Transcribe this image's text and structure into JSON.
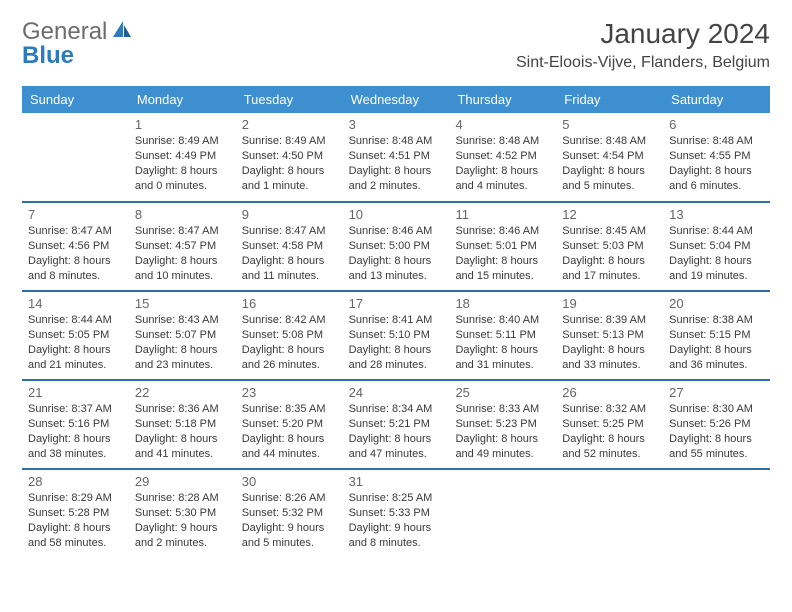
{
  "brand": {
    "part1": "General",
    "part2": "Blue"
  },
  "title": "January 2024",
  "location": "Sint-Eloois-Vijve, Flanders, Belgium",
  "colors": {
    "header_bg": "#3d8fcf",
    "header_text": "#ffffff",
    "rule": "#2f6fa8",
    "body_text": "#3a3a3a",
    "daynum_text": "#666666",
    "brand_gray": "#6c6c6c",
    "brand_blue": "#2b7bbd",
    "page_bg": "#ffffff"
  },
  "typography": {
    "title_fontsize": 28,
    "location_fontsize": 16,
    "dayhead_fontsize": 13,
    "daynum_fontsize": 13,
    "info_fontsize": 11
  },
  "day_headers": [
    "Sunday",
    "Monday",
    "Tuesday",
    "Wednesday",
    "Thursday",
    "Friday",
    "Saturday"
  ],
  "weeks": [
    [
      {
        "blank": true
      },
      {
        "num": "1",
        "sunrise": "Sunrise: 8:49 AM",
        "sunset": "Sunset: 4:49 PM",
        "daylight": "Daylight: 8 hours and 0 minutes."
      },
      {
        "num": "2",
        "sunrise": "Sunrise: 8:49 AM",
        "sunset": "Sunset: 4:50 PM",
        "daylight": "Daylight: 8 hours and 1 minute."
      },
      {
        "num": "3",
        "sunrise": "Sunrise: 8:48 AM",
        "sunset": "Sunset: 4:51 PM",
        "daylight": "Daylight: 8 hours and 2 minutes."
      },
      {
        "num": "4",
        "sunrise": "Sunrise: 8:48 AM",
        "sunset": "Sunset: 4:52 PM",
        "daylight": "Daylight: 8 hours and 4 minutes."
      },
      {
        "num": "5",
        "sunrise": "Sunrise: 8:48 AM",
        "sunset": "Sunset: 4:54 PM",
        "daylight": "Daylight: 8 hours and 5 minutes."
      },
      {
        "num": "6",
        "sunrise": "Sunrise: 8:48 AM",
        "sunset": "Sunset: 4:55 PM",
        "daylight": "Daylight: 8 hours and 6 minutes."
      }
    ],
    [
      {
        "num": "7",
        "sunrise": "Sunrise: 8:47 AM",
        "sunset": "Sunset: 4:56 PM",
        "daylight": "Daylight: 8 hours and 8 minutes."
      },
      {
        "num": "8",
        "sunrise": "Sunrise: 8:47 AM",
        "sunset": "Sunset: 4:57 PM",
        "daylight": "Daylight: 8 hours and 10 minutes."
      },
      {
        "num": "9",
        "sunrise": "Sunrise: 8:47 AM",
        "sunset": "Sunset: 4:58 PM",
        "daylight": "Daylight: 8 hours and 11 minutes."
      },
      {
        "num": "10",
        "sunrise": "Sunrise: 8:46 AM",
        "sunset": "Sunset: 5:00 PM",
        "daylight": "Daylight: 8 hours and 13 minutes."
      },
      {
        "num": "11",
        "sunrise": "Sunrise: 8:46 AM",
        "sunset": "Sunset: 5:01 PM",
        "daylight": "Daylight: 8 hours and 15 minutes."
      },
      {
        "num": "12",
        "sunrise": "Sunrise: 8:45 AM",
        "sunset": "Sunset: 5:03 PM",
        "daylight": "Daylight: 8 hours and 17 minutes."
      },
      {
        "num": "13",
        "sunrise": "Sunrise: 8:44 AM",
        "sunset": "Sunset: 5:04 PM",
        "daylight": "Daylight: 8 hours and 19 minutes."
      }
    ],
    [
      {
        "num": "14",
        "sunrise": "Sunrise: 8:44 AM",
        "sunset": "Sunset: 5:05 PM",
        "daylight": "Daylight: 8 hours and 21 minutes."
      },
      {
        "num": "15",
        "sunrise": "Sunrise: 8:43 AM",
        "sunset": "Sunset: 5:07 PM",
        "daylight": "Daylight: 8 hours and 23 minutes."
      },
      {
        "num": "16",
        "sunrise": "Sunrise: 8:42 AM",
        "sunset": "Sunset: 5:08 PM",
        "daylight": "Daylight: 8 hours and 26 minutes."
      },
      {
        "num": "17",
        "sunrise": "Sunrise: 8:41 AM",
        "sunset": "Sunset: 5:10 PM",
        "daylight": "Daylight: 8 hours and 28 minutes."
      },
      {
        "num": "18",
        "sunrise": "Sunrise: 8:40 AM",
        "sunset": "Sunset: 5:11 PM",
        "daylight": "Daylight: 8 hours and 31 minutes."
      },
      {
        "num": "19",
        "sunrise": "Sunrise: 8:39 AM",
        "sunset": "Sunset: 5:13 PM",
        "daylight": "Daylight: 8 hours and 33 minutes."
      },
      {
        "num": "20",
        "sunrise": "Sunrise: 8:38 AM",
        "sunset": "Sunset: 5:15 PM",
        "daylight": "Daylight: 8 hours and 36 minutes."
      }
    ],
    [
      {
        "num": "21",
        "sunrise": "Sunrise: 8:37 AM",
        "sunset": "Sunset: 5:16 PM",
        "daylight": "Daylight: 8 hours and 38 minutes."
      },
      {
        "num": "22",
        "sunrise": "Sunrise: 8:36 AM",
        "sunset": "Sunset: 5:18 PM",
        "daylight": "Daylight: 8 hours and 41 minutes."
      },
      {
        "num": "23",
        "sunrise": "Sunrise: 8:35 AM",
        "sunset": "Sunset: 5:20 PM",
        "daylight": "Daylight: 8 hours and 44 minutes."
      },
      {
        "num": "24",
        "sunrise": "Sunrise: 8:34 AM",
        "sunset": "Sunset: 5:21 PM",
        "daylight": "Daylight: 8 hours and 47 minutes."
      },
      {
        "num": "25",
        "sunrise": "Sunrise: 8:33 AM",
        "sunset": "Sunset: 5:23 PM",
        "daylight": "Daylight: 8 hours and 49 minutes."
      },
      {
        "num": "26",
        "sunrise": "Sunrise: 8:32 AM",
        "sunset": "Sunset: 5:25 PM",
        "daylight": "Daylight: 8 hours and 52 minutes."
      },
      {
        "num": "27",
        "sunrise": "Sunrise: 8:30 AM",
        "sunset": "Sunset: 5:26 PM",
        "daylight": "Daylight: 8 hours and 55 minutes."
      }
    ],
    [
      {
        "num": "28",
        "sunrise": "Sunrise: 8:29 AM",
        "sunset": "Sunset: 5:28 PM",
        "daylight": "Daylight: 8 hours and 58 minutes."
      },
      {
        "num": "29",
        "sunrise": "Sunrise: 8:28 AM",
        "sunset": "Sunset: 5:30 PM",
        "daylight": "Daylight: 9 hours and 2 minutes."
      },
      {
        "num": "30",
        "sunrise": "Sunrise: 8:26 AM",
        "sunset": "Sunset: 5:32 PM",
        "daylight": "Daylight: 9 hours and 5 minutes."
      },
      {
        "num": "31",
        "sunrise": "Sunrise: 8:25 AM",
        "sunset": "Sunset: 5:33 PM",
        "daylight": "Daylight: 9 hours and 8 minutes."
      },
      {
        "blank": true
      },
      {
        "blank": true
      },
      {
        "blank": true
      }
    ]
  ]
}
